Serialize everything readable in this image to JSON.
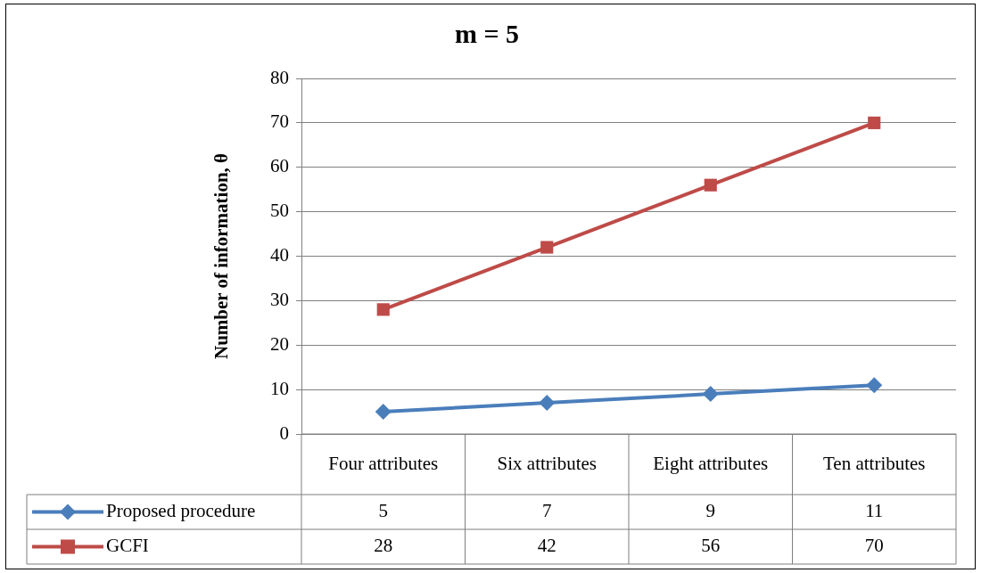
{
  "chart_data": {
    "type": "line",
    "title": "m = 5",
    "ylabel": "Number of information, θ",
    "categories": [
      "Four attributes",
      "Six attributes",
      "Eight attributes",
      "Ten attributes"
    ],
    "series": [
      {
        "name": "Proposed procedure",
        "color": "#4a7ebb",
        "marker": "diamond",
        "values": [
          5,
          7,
          9,
          11
        ]
      },
      {
        "name": "GCFI",
        "color": "#be4b48",
        "marker": "square",
        "values": [
          28,
          42,
          56,
          70
        ]
      }
    ],
    "ylim": [
      0,
      80
    ],
    "yticks": [
      0,
      10,
      20,
      30,
      40,
      50,
      60,
      70,
      80
    ],
    "grid": "y",
    "legend": "bottom",
    "data_labels": true
  }
}
